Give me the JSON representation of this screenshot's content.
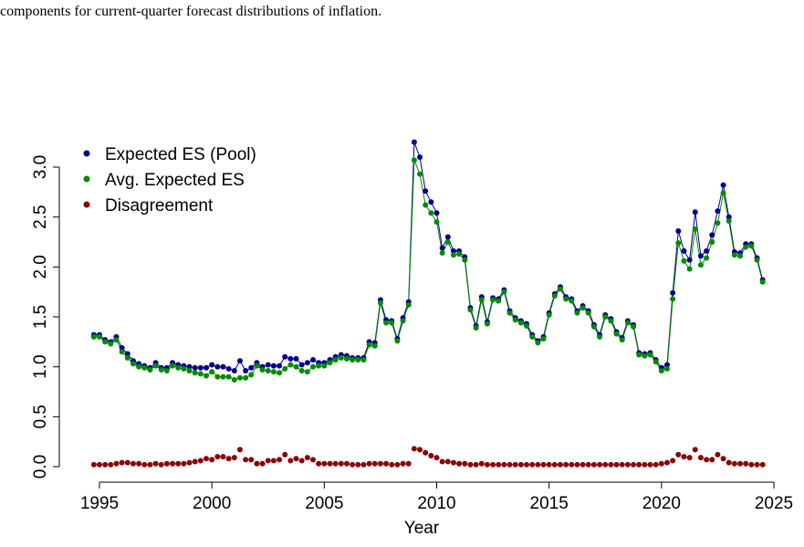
{
  "caption": "components for current-quarter forecast distributions of inflation.",
  "chart_data": {
    "type": "scatter-line",
    "xlabel": "Year",
    "x": [
      1994.75,
      1995,
      1995.25,
      1995.5,
      1995.75,
      1996,
      1996.25,
      1996.5,
      1996.75,
      1997,
      1997.25,
      1997.5,
      1997.75,
      1998,
      1998.25,
      1998.5,
      1998.75,
      1999,
      1999.25,
      1999.5,
      1999.75,
      2000,
      2000.25,
      2000.5,
      2000.75,
      2001,
      2001.25,
      2001.5,
      2001.75,
      2002,
      2002.25,
      2002.5,
      2002.75,
      2003,
      2003.25,
      2003.5,
      2003.75,
      2004,
      2004.25,
      2004.5,
      2004.75,
      2005,
      2005.25,
      2005.5,
      2005.75,
      2006,
      2006.25,
      2006.5,
      2006.75,
      2007,
      2007.25,
      2007.5,
      2007.75,
      2008,
      2008.25,
      2008.5,
      2008.75,
      2009,
      2009.25,
      2009.5,
      2009.75,
      2010,
      2010.25,
      2010.5,
      2010.75,
      2011,
      2011.25,
      2011.5,
      2011.75,
      2012,
      2012.25,
      2012.5,
      2012.75,
      2013,
      2013.25,
      2013.5,
      2013.75,
      2014,
      2014.25,
      2014.5,
      2014.75,
      2015,
      2015.25,
      2015.5,
      2015.75,
      2016,
      2016.25,
      2016.5,
      2016.75,
      2017,
      2017.25,
      2017.5,
      2017.75,
      2018,
      2018.25,
      2018.5,
      2018.75,
      2019,
      2019.25,
      2019.5,
      2019.75,
      2020,
      2020.25,
      2020.5,
      2020.75,
      2021,
      2021.25,
      2021.5,
      2021.75,
      2022,
      2022.25,
      2022.5,
      2022.75,
      2023,
      2023.25,
      2023.5,
      2023.75,
      2024,
      2024.25,
      2024.5
    ],
    "series": [
      {
        "name": "Expected ES (Pool)",
        "color": "#00008b",
        "line": true,
        "values": [
          1.32,
          1.32,
          1.27,
          1.25,
          1.3,
          1.19,
          1.13,
          1.06,
          1.03,
          1.01,
          0.99,
          1.04,
          0.99,
          0.99,
          1.04,
          1.02,
          1.01,
          1.0,
          0.99,
          0.99,
          0.99,
          1.02,
          1.0,
          1.0,
          0.98,
          0.96,
          1.06,
          0.96,
          0.99,
          1.04,
          1.0,
          1.02,
          1.01,
          1.01,
          1.1,
          1.08,
          1.08,
          1.02,
          1.04,
          1.07,
          1.04,
          1.04,
          1.07,
          1.1,
          1.12,
          1.11,
          1.09,
          1.09,
          1.09,
          1.25,
          1.24,
          1.67,
          1.47,
          1.46,
          1.28,
          1.49,
          1.65,
          3.25,
          3.1,
          2.76,
          2.65,
          2.54,
          2.19,
          2.3,
          2.16,
          2.16,
          2.1,
          1.59,
          1.41,
          1.7,
          1.45,
          1.69,
          1.68,
          1.77,
          1.56,
          1.49,
          1.46,
          1.43,
          1.32,
          1.26,
          1.3,
          1.54,
          1.73,
          1.8,
          1.7,
          1.68,
          1.56,
          1.61,
          1.56,
          1.42,
          1.32,
          1.52,
          1.48,
          1.35,
          1.29,
          1.46,
          1.42,
          1.14,
          1.13,
          1.14,
          1.07,
          0.99,
          1.02,
          1.74,
          2.36,
          2.16,
          2.07,
          2.55,
          2.11,
          2.16,
          2.32,
          2.56,
          2.82,
          2.5,
          2.15,
          2.14,
          2.23,
          2.23,
          2.09,
          1.87
        ]
      },
      {
        "name": "Avg. Expected ES",
        "color": "#008b00",
        "line": true,
        "values": [
          1.3,
          1.3,
          1.25,
          1.23,
          1.27,
          1.15,
          1.09,
          1.03,
          1.0,
          0.99,
          0.97,
          1.01,
          0.97,
          0.96,
          1.01,
          0.99,
          0.98,
          0.96,
          0.94,
          0.93,
          0.91,
          0.95,
          0.9,
          0.9,
          0.9,
          0.87,
          0.89,
          0.89,
          0.92,
          1.01,
          0.97,
          0.96,
          0.95,
          0.94,
          0.98,
          1.02,
          1.0,
          0.96,
          0.95,
          1.0,
          1.01,
          1.01,
          1.04,
          1.07,
          1.09,
          1.08,
          1.07,
          1.07,
          1.07,
          1.22,
          1.21,
          1.64,
          1.44,
          1.44,
          1.26,
          1.46,
          1.62,
          3.07,
          2.93,
          2.62,
          2.54,
          2.45,
          2.14,
          2.25,
          2.12,
          2.13,
          2.07,
          1.57,
          1.39,
          1.67,
          1.43,
          1.67,
          1.66,
          1.75,
          1.54,
          1.47,
          1.44,
          1.41,
          1.3,
          1.24,
          1.28,
          1.52,
          1.71,
          1.78,
          1.68,
          1.66,
          1.54,
          1.59,
          1.54,
          1.4,
          1.3,
          1.5,
          1.46,
          1.33,
          1.27,
          1.44,
          1.4,
          1.12,
          1.11,
          1.12,
          1.05,
          0.96,
          0.98,
          1.68,
          2.24,
          2.06,
          1.98,
          2.38,
          2.02,
          2.09,
          2.25,
          2.44,
          2.74,
          2.46,
          2.12,
          2.11,
          2.2,
          2.21,
          2.07,
          1.85
        ]
      },
      {
        "name": "Disagreement",
        "color": "#8b0000",
        "line": false,
        "values": [
          0.02,
          0.02,
          0.02,
          0.02,
          0.03,
          0.04,
          0.04,
          0.03,
          0.03,
          0.02,
          0.02,
          0.03,
          0.02,
          0.03,
          0.03,
          0.03,
          0.03,
          0.04,
          0.05,
          0.06,
          0.08,
          0.07,
          0.1,
          0.1,
          0.08,
          0.09,
          0.17,
          0.07,
          0.07,
          0.03,
          0.03,
          0.06,
          0.06,
          0.07,
          0.12,
          0.06,
          0.08,
          0.06,
          0.09,
          0.07,
          0.03,
          0.03,
          0.03,
          0.03,
          0.03,
          0.03,
          0.02,
          0.02,
          0.02,
          0.03,
          0.03,
          0.03,
          0.03,
          0.02,
          0.02,
          0.03,
          0.03,
          0.18,
          0.17,
          0.14,
          0.11,
          0.09,
          0.05,
          0.05,
          0.04,
          0.03,
          0.03,
          0.02,
          0.02,
          0.03,
          0.02,
          0.02,
          0.02,
          0.02,
          0.02,
          0.02,
          0.02,
          0.02,
          0.02,
          0.02,
          0.02,
          0.02,
          0.02,
          0.02,
          0.02,
          0.02,
          0.02,
          0.02,
          0.02,
          0.02,
          0.02,
          0.02,
          0.02,
          0.02,
          0.02,
          0.02,
          0.02,
          0.02,
          0.02,
          0.02,
          0.02,
          0.03,
          0.04,
          0.06,
          0.12,
          0.1,
          0.09,
          0.17,
          0.09,
          0.07,
          0.07,
          0.12,
          0.08,
          0.04,
          0.03,
          0.03,
          0.03,
          0.02,
          0.02,
          0.02
        ]
      }
    ],
    "xlim": [
      1995,
      2025
    ],
    "xticks": [
      1995,
      2000,
      2005,
      2010,
      2015,
      2020,
      2025
    ],
    "ylim": [
      0,
      3
    ],
    "yticks": [
      {
        "value": 0,
        "label": "0.0"
      },
      {
        "value": 0.5,
        "label": "0.5"
      },
      {
        "value": 1,
        "label": "1.0"
      },
      {
        "value": 1.5,
        "label": "1.5"
      },
      {
        "value": 2,
        "label": "2.0"
      },
      {
        "value": 2.5,
        "label": "2.5"
      },
      {
        "value": 3,
        "label": "3.0"
      }
    ],
    "legend": "top-left"
  }
}
